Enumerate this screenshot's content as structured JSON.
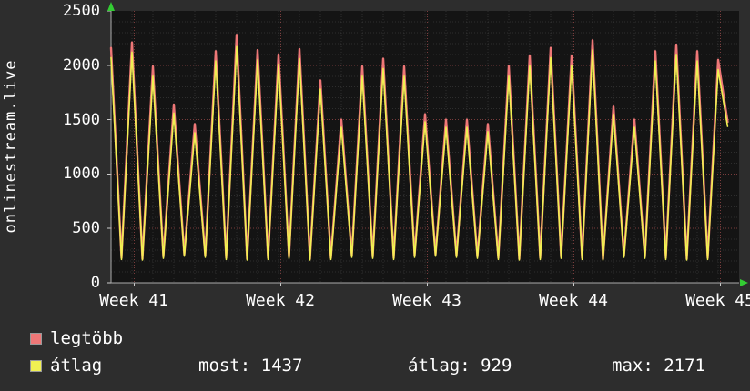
{
  "chart_data": {
    "type": "line",
    "title": "onlinestream.live",
    "grid": true,
    "legend_position": "bottom-left",
    "x_axis": {
      "labels": [
        "Week 41",
        "Week 42",
        "Week 43",
        "Week 44",
        "Week 45"
      ],
      "label_days": [
        1.1,
        8.1,
        15.1,
        22.1,
        29.1
      ],
      "range": [
        0,
        30
      ],
      "unit": "days"
    },
    "y_axis": {
      "ticks": [
        0,
        500,
        1000,
        1500,
        2000,
        2500
      ],
      "tick_labels": [
        "0",
        "500",
        "1000",
        "1500",
        "2000",
        "2500"
      ],
      "range": [
        0,
        2500
      ],
      "minor_step": 100,
      "major_step": 500
    },
    "x": [
      0,
      0.5,
      1,
      1.5,
      2,
      2.5,
      3,
      3.5,
      4,
      4.5,
      5,
      5.5,
      6,
      6.5,
      7,
      7.5,
      8,
      8.5,
      9,
      9.5,
      10,
      10.5,
      11,
      11.5,
      12,
      12.5,
      13,
      13.5,
      14,
      14.5,
      15,
      15.5,
      16,
      16.5,
      17,
      17.5,
      18,
      18.5,
      19,
      19.5,
      20,
      20.5,
      21,
      21.5,
      22,
      22.5,
      23,
      23.5,
      24,
      24.5,
      25,
      25.5,
      26,
      26.5,
      27,
      27.5,
      28,
      28.5,
      29,
      29.45
    ],
    "series": [
      {
        "name": "legtöbb",
        "color": "#ee7777",
        "values": [
          2160,
          230,
          2210,
          220,
          1990,
          240,
          1640,
          260,
          1460,
          250,
          2130,
          230,
          2280,
          220,
          2140,
          230,
          2100,
          240,
          2150,
          220,
          1860,
          230,
          1500,
          250,
          1990,
          240,
          2060,
          230,
          1990,
          250,
          1550,
          260,
          1500,
          250,
          1500,
          240,
          1460,
          230,
          1990,
          220,
          2090,
          230,
          2160,
          240,
          2090,
          230,
          2230,
          220,
          1620,
          250,
          1500,
          240,
          2130,
          230,
          2190,
          220,
          2130,
          230,
          2050,
          1480
        ]
      },
      {
        "name": "átlag",
        "color": "#f0f052",
        "values": [
          2070,
          215,
          2120,
          210,
          1900,
          225,
          1560,
          245,
          1380,
          235,
          2040,
          215,
          2171,
          210,
          2050,
          215,
          2010,
          225,
          2060,
          210,
          1780,
          215,
          1430,
          235,
          1900,
          225,
          1970,
          215,
          1900,
          235,
          1480,
          245,
          1430,
          235,
          1430,
          225,
          1390,
          215,
          1900,
          210,
          2000,
          215,
          2070,
          225,
          2000,
          215,
          2140,
          210,
          1550,
          235,
          1430,
          225,
          2040,
          215,
          2100,
          210,
          2040,
          215,
          1960,
          1437
        ]
      }
    ],
    "stats": {
      "most": 1437,
      "atlag": 929,
      "max": 2171,
      "most_label": "most: 1437",
      "atlag_label": "átlag: 929",
      "max_label": "max: 2171"
    },
    "colors": {
      "plot_background": "#141414",
      "page_background": "#2d2d2d",
      "major_grid": "#e06464",
      "minor_grid": "#8c8c8c",
      "axis_arrow": "#33cc33",
      "text": "#ffffff"
    }
  }
}
